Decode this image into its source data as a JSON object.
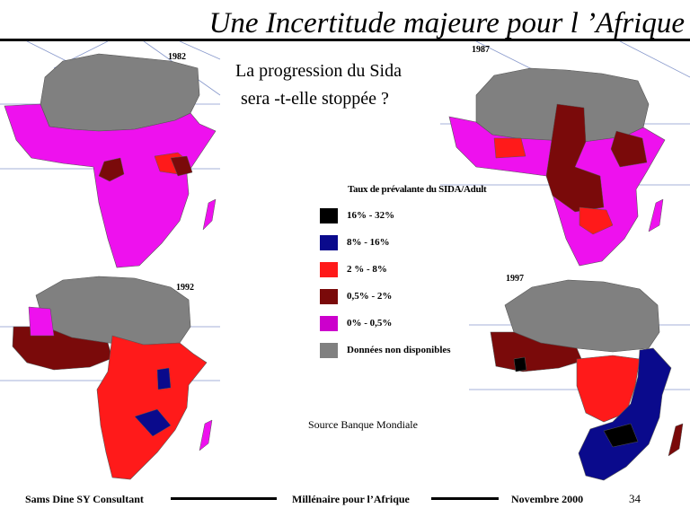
{
  "slide": {
    "title": "Une Incertitude majeure pour l ’Afrique",
    "question_line1": "La progression du Sida",
    "question_line2": "sera -t-elle stoppée ?",
    "source": "Source Banque Mondiale"
  },
  "maps": [
    {
      "year": "1982"
    },
    {
      "year": "1987"
    },
    {
      "year": "1992"
    },
    {
      "year": "1997"
    }
  ],
  "legend": {
    "title": "Taux de prévalante du SIDA/Adult",
    "items": [
      {
        "label": "16% - 32%",
        "color": "#000000"
      },
      {
        "label": "8% -  16%",
        "color": "#0a0a8c"
      },
      {
        "label": "2 % - 8%",
        "color": "#ff1a1a"
      },
      {
        "label": "0,5% - 2%",
        "color": "#7a0a0a"
      },
      {
        "label": "0% - 0,5%",
        "color": "#cc00cc"
      },
      {
        "label": "Données non disponibles",
        "color": "#808080"
      }
    ]
  },
  "colors": {
    "no_data": "#808080",
    "low": "#ee11ee",
    "mid_low": "#7a0a0a",
    "mid": "#ff1a1a",
    "high": "#0a0a8c",
    "very_high": "#000000"
  },
  "footer": {
    "left": "Sams Dine SY Consultant",
    "center": "Millénaire pour l’Afrique",
    "right": "Novembre 2000",
    "page": "34"
  }
}
